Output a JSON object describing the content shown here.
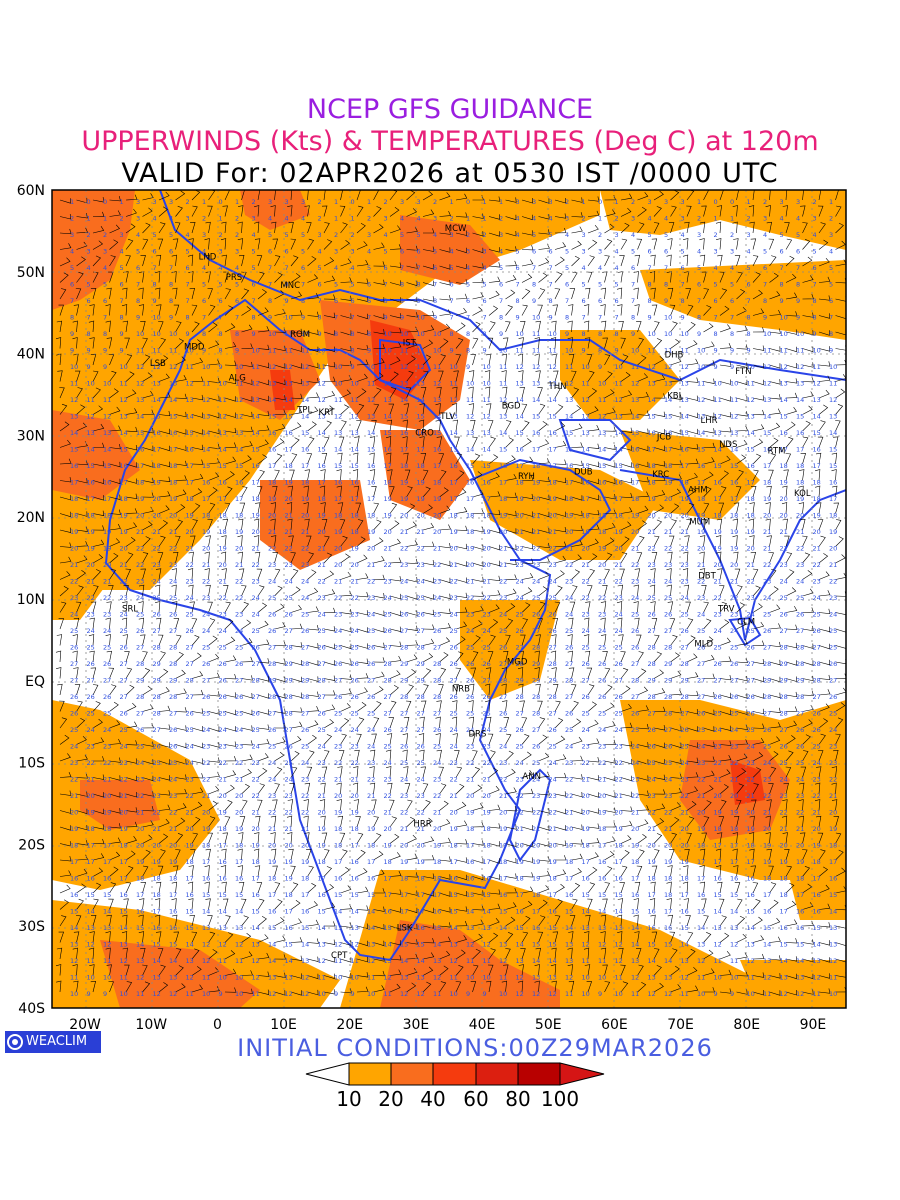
{
  "title_line1": "NCEP GFS GUIDANCE",
  "title_line2": "UPPERWINDS (Kts) & TEMPERATURES (Deg C) at 120m",
  "title_line3": "VALID For: 02APR2026 at 0530 IST /0000 UTC",
  "initial_conditions": "INITIAL CONDITIONS:00Z29MAR2026",
  "logo_text": "WEACLIM",
  "map": {
    "lon_range": [
      -25,
      95
    ],
    "lat_range": [
      -40,
      60
    ],
    "lat_labels": [
      "60N",
      "50N",
      "40N",
      "30N",
      "20N",
      "10N",
      "EQ",
      "10S",
      "20S",
      "30S",
      "40S"
    ],
    "lon_labels": [
      "20W",
      "10W",
      "0",
      "10E",
      "20E",
      "30E",
      "40E",
      "50E",
      "60E",
      "70E",
      "80E",
      "90E"
    ],
    "colors": {
      "coast": "#2a44e8",
      "barb": "#000000",
      "temp_label": "#3050e0"
    },
    "stations": [
      {
        "code": "MCW",
        "lon": 36,
        "lat": 55
      },
      {
        "code": "LND",
        "lon": -1.5,
        "lat": 51.5
      },
      {
        "code": "PRS",
        "lon": 2.5,
        "lat": 49
      },
      {
        "code": "MNC",
        "lon": 11,
        "lat": 48
      },
      {
        "code": "MDD",
        "lon": -3.5,
        "lat": 40.5
      },
      {
        "code": "ROM",
        "lon": 12.5,
        "lat": 42
      },
      {
        "code": "IST",
        "lon": 29,
        "lat": 41
      },
      {
        "code": "ALG",
        "lon": 3,
        "lat": 36.7
      },
      {
        "code": "LSB",
        "lon": -9,
        "lat": 38.5
      },
      {
        "code": "TPL",
        "lon": 13.2,
        "lat": 32.8
      },
      {
        "code": "KRT",
        "lon": 16.5,
        "lat": 32.5
      },
      {
        "code": "CRO",
        "lon": 31.3,
        "lat": 30
      },
      {
        "code": "TLV",
        "lon": 34.8,
        "lat": 32
      },
      {
        "code": "BGD",
        "lon": 44.4,
        "lat": 33.3
      },
      {
        "code": "THN",
        "lon": 51.4,
        "lat": 35.7
      },
      {
        "code": "DHB",
        "lon": 69,
        "lat": 39.5
      },
      {
        "code": "KBL",
        "lon": 69.2,
        "lat": 34.5
      },
      {
        "code": "LHR",
        "lon": 74.3,
        "lat": 31.5
      },
      {
        "code": "FTN",
        "lon": 79.5,
        "lat": 37.5
      },
      {
        "code": "NDS",
        "lon": 77.2,
        "lat": 28.6
      },
      {
        "code": "RTM",
        "lon": 84.5,
        "lat": 27.8
      },
      {
        "code": "JCB",
        "lon": 67.5,
        "lat": 29.5
      },
      {
        "code": "KRC",
        "lon": 67,
        "lat": 24.9
      },
      {
        "code": "AHM",
        "lon": 72.6,
        "lat": 23
      },
      {
        "code": "KOL",
        "lon": 88.4,
        "lat": 22.6
      },
      {
        "code": "DUB",
        "lon": 55.3,
        "lat": 25.2
      },
      {
        "code": "RYH",
        "lon": 46.7,
        "lat": 24.7
      },
      {
        "code": "MUM",
        "lon": 72.9,
        "lat": 19.1
      },
      {
        "code": "DBT",
        "lon": 74,
        "lat": 12.5
      },
      {
        "code": "TRV",
        "lon": 76.9,
        "lat": 8.5
      },
      {
        "code": "CLM",
        "lon": 79.9,
        "lat": 6.9
      },
      {
        "code": "MLD",
        "lon": 73.5,
        "lat": 4.2
      },
      {
        "code": "SRL",
        "lon": -13.2,
        "lat": 8.5
      },
      {
        "code": "MGD",
        "lon": 45.3,
        "lat": 2
      },
      {
        "code": "NRB",
        "lon": 36.8,
        "lat": -1.3
      },
      {
        "code": "DRS",
        "lon": 39.3,
        "lat": -6.8
      },
      {
        "code": "ANN",
        "lon": 47.5,
        "lat": -12
      },
      {
        "code": "HRR",
        "lon": 31,
        "lat": -17.8
      },
      {
        "code": "LSK",
        "lon": 28.3,
        "lat": -30.5
      },
      {
        "code": "CPT",
        "lon": 18.4,
        "lat": -33.9
      }
    ]
  },
  "colorbar": {
    "labels": [
      "10",
      "20",
      "40",
      "60",
      "80",
      "100"
    ],
    "colors": [
      "#ffffff",
      "#ffa500",
      "#f96d1e",
      "#f53b0e",
      "#dc1f10",
      "#b80000",
      "#d51515"
    ]
  }
}
